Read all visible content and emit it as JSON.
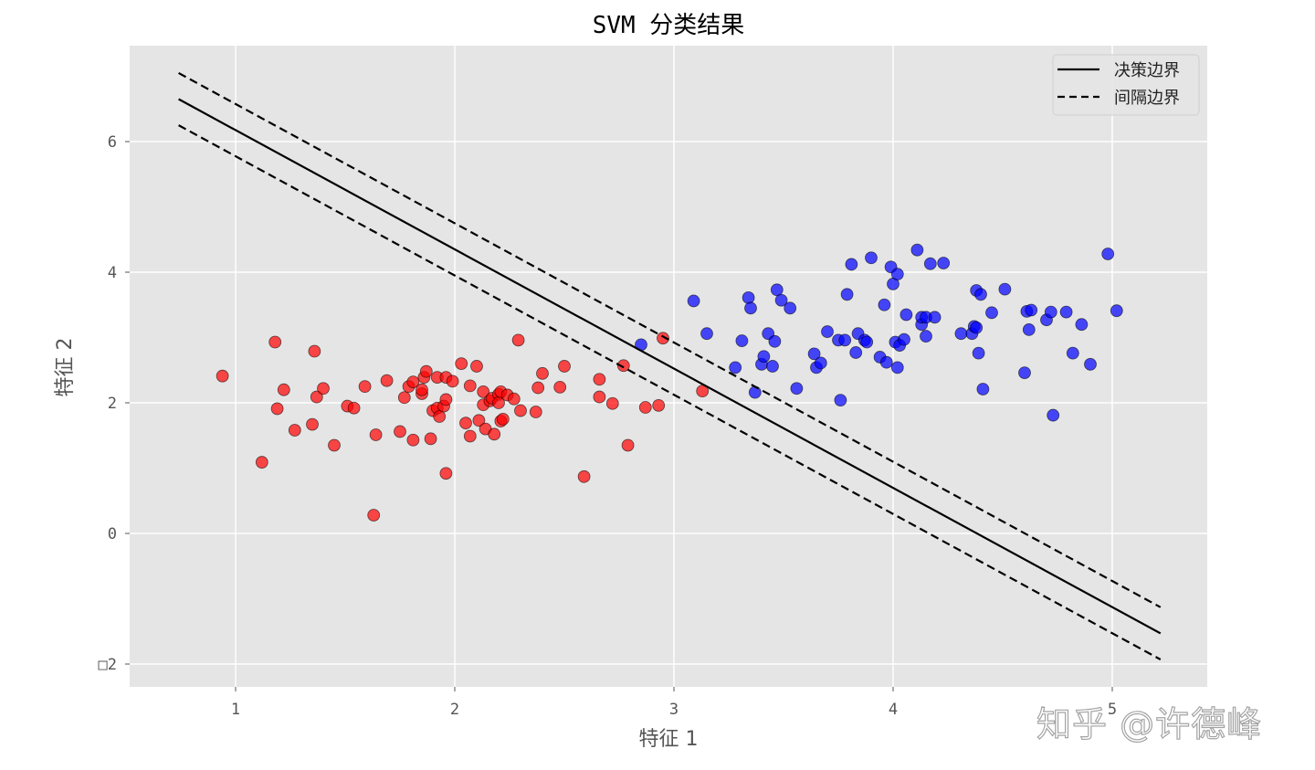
{
  "chart_data": {
    "type": "scatter",
    "title": "SVM 分类结果",
    "xlabel": "特征 1",
    "ylabel": "特征 2",
    "xlim": [
      0.52,
      5.44
    ],
    "ylim": [
      -2.35,
      7.4
    ],
    "xticks": [
      1,
      2,
      3,
      4,
      5
    ],
    "xtick_labels": [
      "1",
      "2",
      "3",
      "4",
      "5"
    ],
    "yticks": [
      6,
      4,
      2,
      0,
      -2
    ],
    "ytick_labels": [
      "6",
      "4",
      "2",
      "0",
      "□2"
    ],
    "grid": true,
    "style": "ggplot",
    "legend": {
      "position": "upper right",
      "entries": [
        "决策边界",
        "间隔边界"
      ]
    },
    "colors": {
      "class_0": "#ff0000",
      "class_1": "#0000ff",
      "background": "#e5e5e5",
      "grid": "#ffffff",
      "line": "#000000"
    },
    "lines": [
      {
        "name": "决策边界",
        "style": "solid",
        "x": [
          0.74,
          5.22
        ],
        "y": [
          6.65,
          -1.53
        ]
      },
      {
        "name": "间隔边界",
        "style": "dashed",
        "x": [
          0.74,
          5.22
        ],
        "y": [
          7.05,
          -1.13
        ]
      },
      {
        "name": "间隔边界",
        "style": "dashed",
        "x": [
          0.74,
          5.22
        ],
        "y": [
          6.25,
          -1.93
        ]
      }
    ],
    "series": [
      {
        "name": "class_0",
        "color": "#ff0000",
        "points": [
          [
            0.94,
            2.41
          ],
          [
            1.12,
            1.09
          ],
          [
            1.18,
            2.93
          ],
          [
            1.19,
            1.91
          ],
          [
            1.22,
            2.2
          ],
          [
            1.27,
            1.58
          ],
          [
            1.35,
            1.67
          ],
          [
            1.36,
            2.79
          ],
          [
            1.37,
            2.09
          ],
          [
            1.4,
            2.22
          ],
          [
            1.45,
            1.35
          ],
          [
            1.51,
            1.95
          ],
          [
            1.54,
            1.92
          ],
          [
            1.59,
            2.25
          ],
          [
            1.63,
            0.28
          ],
          [
            1.64,
            1.51
          ],
          [
            1.69,
            2.34
          ],
          [
            1.75,
            1.56
          ],
          [
            1.77,
            2.08
          ],
          [
            1.79,
            2.25
          ],
          [
            1.81,
            2.32
          ],
          [
            1.81,
            1.43
          ],
          [
            1.85,
            2.14
          ],
          [
            1.85,
            2.2
          ],
          [
            1.86,
            2.39
          ],
          [
            1.87,
            2.48
          ],
          [
            1.89,
            1.45
          ],
          [
            1.9,
            1.88
          ],
          [
            1.92,
            1.92
          ],
          [
            1.92,
            2.39
          ],
          [
            1.93,
            1.79
          ],
          [
            1.95,
            1.95
          ],
          [
            1.96,
            2.05
          ],
          [
            1.96,
            2.39
          ],
          [
            1.96,
            0.92
          ],
          [
            1.99,
            2.33
          ],
          [
            2.03,
            2.6
          ],
          [
            2.05,
            1.69
          ],
          [
            2.07,
            2.26
          ],
          [
            2.07,
            1.49
          ],
          [
            2.1,
            2.56
          ],
          [
            2.11,
            1.73
          ],
          [
            2.13,
            1.97
          ],
          [
            2.13,
            2.17
          ],
          [
            2.14,
            1.6
          ],
          [
            2.16,
            2.03
          ],
          [
            2.17,
            2.07
          ],
          [
            2.18,
            1.52
          ],
          [
            2.2,
            2.13
          ],
          [
            2.2,
            2.0
          ],
          [
            2.21,
            2.17
          ],
          [
            2.21,
            1.72
          ],
          [
            2.22,
            1.75
          ],
          [
            2.24,
            2.12
          ],
          [
            2.27,
            2.06
          ],
          [
            2.29,
            2.96
          ],
          [
            2.3,
            1.88
          ],
          [
            2.37,
            1.86
          ],
          [
            2.38,
            2.23
          ],
          [
            2.4,
            2.45
          ],
          [
            2.48,
            2.24
          ],
          [
            2.5,
            2.56
          ],
          [
            2.59,
            0.87
          ],
          [
            2.66,
            2.09
          ],
          [
            2.66,
            2.36
          ],
          [
            2.72,
            1.99
          ],
          [
            2.77,
            2.57
          ],
          [
            2.79,
            1.35
          ],
          [
            2.87,
            1.93
          ],
          [
            2.93,
            1.96
          ],
          [
            2.95,
            2.99
          ],
          [
            3.13,
            2.18
          ]
        ]
      },
      {
        "name": "class_1",
        "color": "#0000ff",
        "points": [
          [
            2.85,
            2.89
          ],
          [
            3.09,
            3.56
          ],
          [
            3.15,
            3.06
          ],
          [
            3.28,
            2.54
          ],
          [
            3.31,
            2.95
          ],
          [
            3.34,
            3.61
          ],
          [
            3.35,
            3.45
          ],
          [
            3.37,
            2.16
          ],
          [
            3.4,
            2.59
          ],
          [
            3.41,
            2.71
          ],
          [
            3.43,
            3.06
          ],
          [
            3.45,
            2.56
          ],
          [
            3.46,
            2.94
          ],
          [
            3.47,
            3.73
          ],
          [
            3.49,
            3.57
          ],
          [
            3.53,
            3.45
          ],
          [
            3.56,
            2.22
          ],
          [
            3.64,
            2.75
          ],
          [
            3.65,
            2.54
          ],
          [
            3.67,
            2.61
          ],
          [
            3.7,
            3.09
          ],
          [
            3.75,
            2.96
          ],
          [
            3.76,
            2.04
          ],
          [
            3.78,
            2.96
          ],
          [
            3.79,
            3.66
          ],
          [
            3.81,
            4.12
          ],
          [
            3.83,
            2.77
          ],
          [
            3.84,
            3.06
          ],
          [
            3.87,
            2.96
          ],
          [
            3.88,
            2.93
          ],
          [
            3.9,
            4.22
          ],
          [
            3.94,
            2.7
          ],
          [
            3.96,
            3.5
          ],
          [
            3.97,
            2.62
          ],
          [
            3.99,
            4.08
          ],
          [
            4.0,
            3.82
          ],
          [
            4.01,
            2.93
          ],
          [
            4.02,
            3.97
          ],
          [
            4.02,
            2.54
          ],
          [
            4.03,
            2.88
          ],
          [
            4.05,
            2.97
          ],
          [
            4.06,
            3.35
          ],
          [
            4.11,
            4.34
          ],
          [
            4.13,
            3.2
          ],
          [
            4.13,
            3.31
          ],
          [
            4.15,
            3.31
          ],
          [
            4.15,
            3.02
          ],
          [
            4.17,
            4.13
          ],
          [
            4.19,
            3.31
          ],
          [
            4.23,
            4.14
          ],
          [
            4.31,
            3.06
          ],
          [
            4.36,
            3.06
          ],
          [
            4.37,
            3.17
          ],
          [
            4.38,
            3.15
          ],
          [
            4.38,
            3.72
          ],
          [
            4.39,
            2.76
          ],
          [
            4.4,
            3.66
          ],
          [
            4.41,
            2.21
          ],
          [
            4.45,
            3.38
          ],
          [
            4.51,
            3.74
          ],
          [
            4.6,
            2.46
          ],
          [
            4.61,
            3.4
          ],
          [
            4.62,
            3.12
          ],
          [
            4.63,
            3.42
          ],
          [
            4.7,
            3.27
          ],
          [
            4.72,
            3.39
          ],
          [
            4.73,
            1.81
          ],
          [
            4.79,
            3.39
          ],
          [
            4.82,
            2.76
          ],
          [
            4.86,
            3.2
          ],
          [
            4.9,
            2.59
          ],
          [
            4.98,
            4.28
          ],
          [
            5.02,
            3.41
          ]
        ]
      }
    ]
  },
  "watermark": "知乎 @许德峰"
}
